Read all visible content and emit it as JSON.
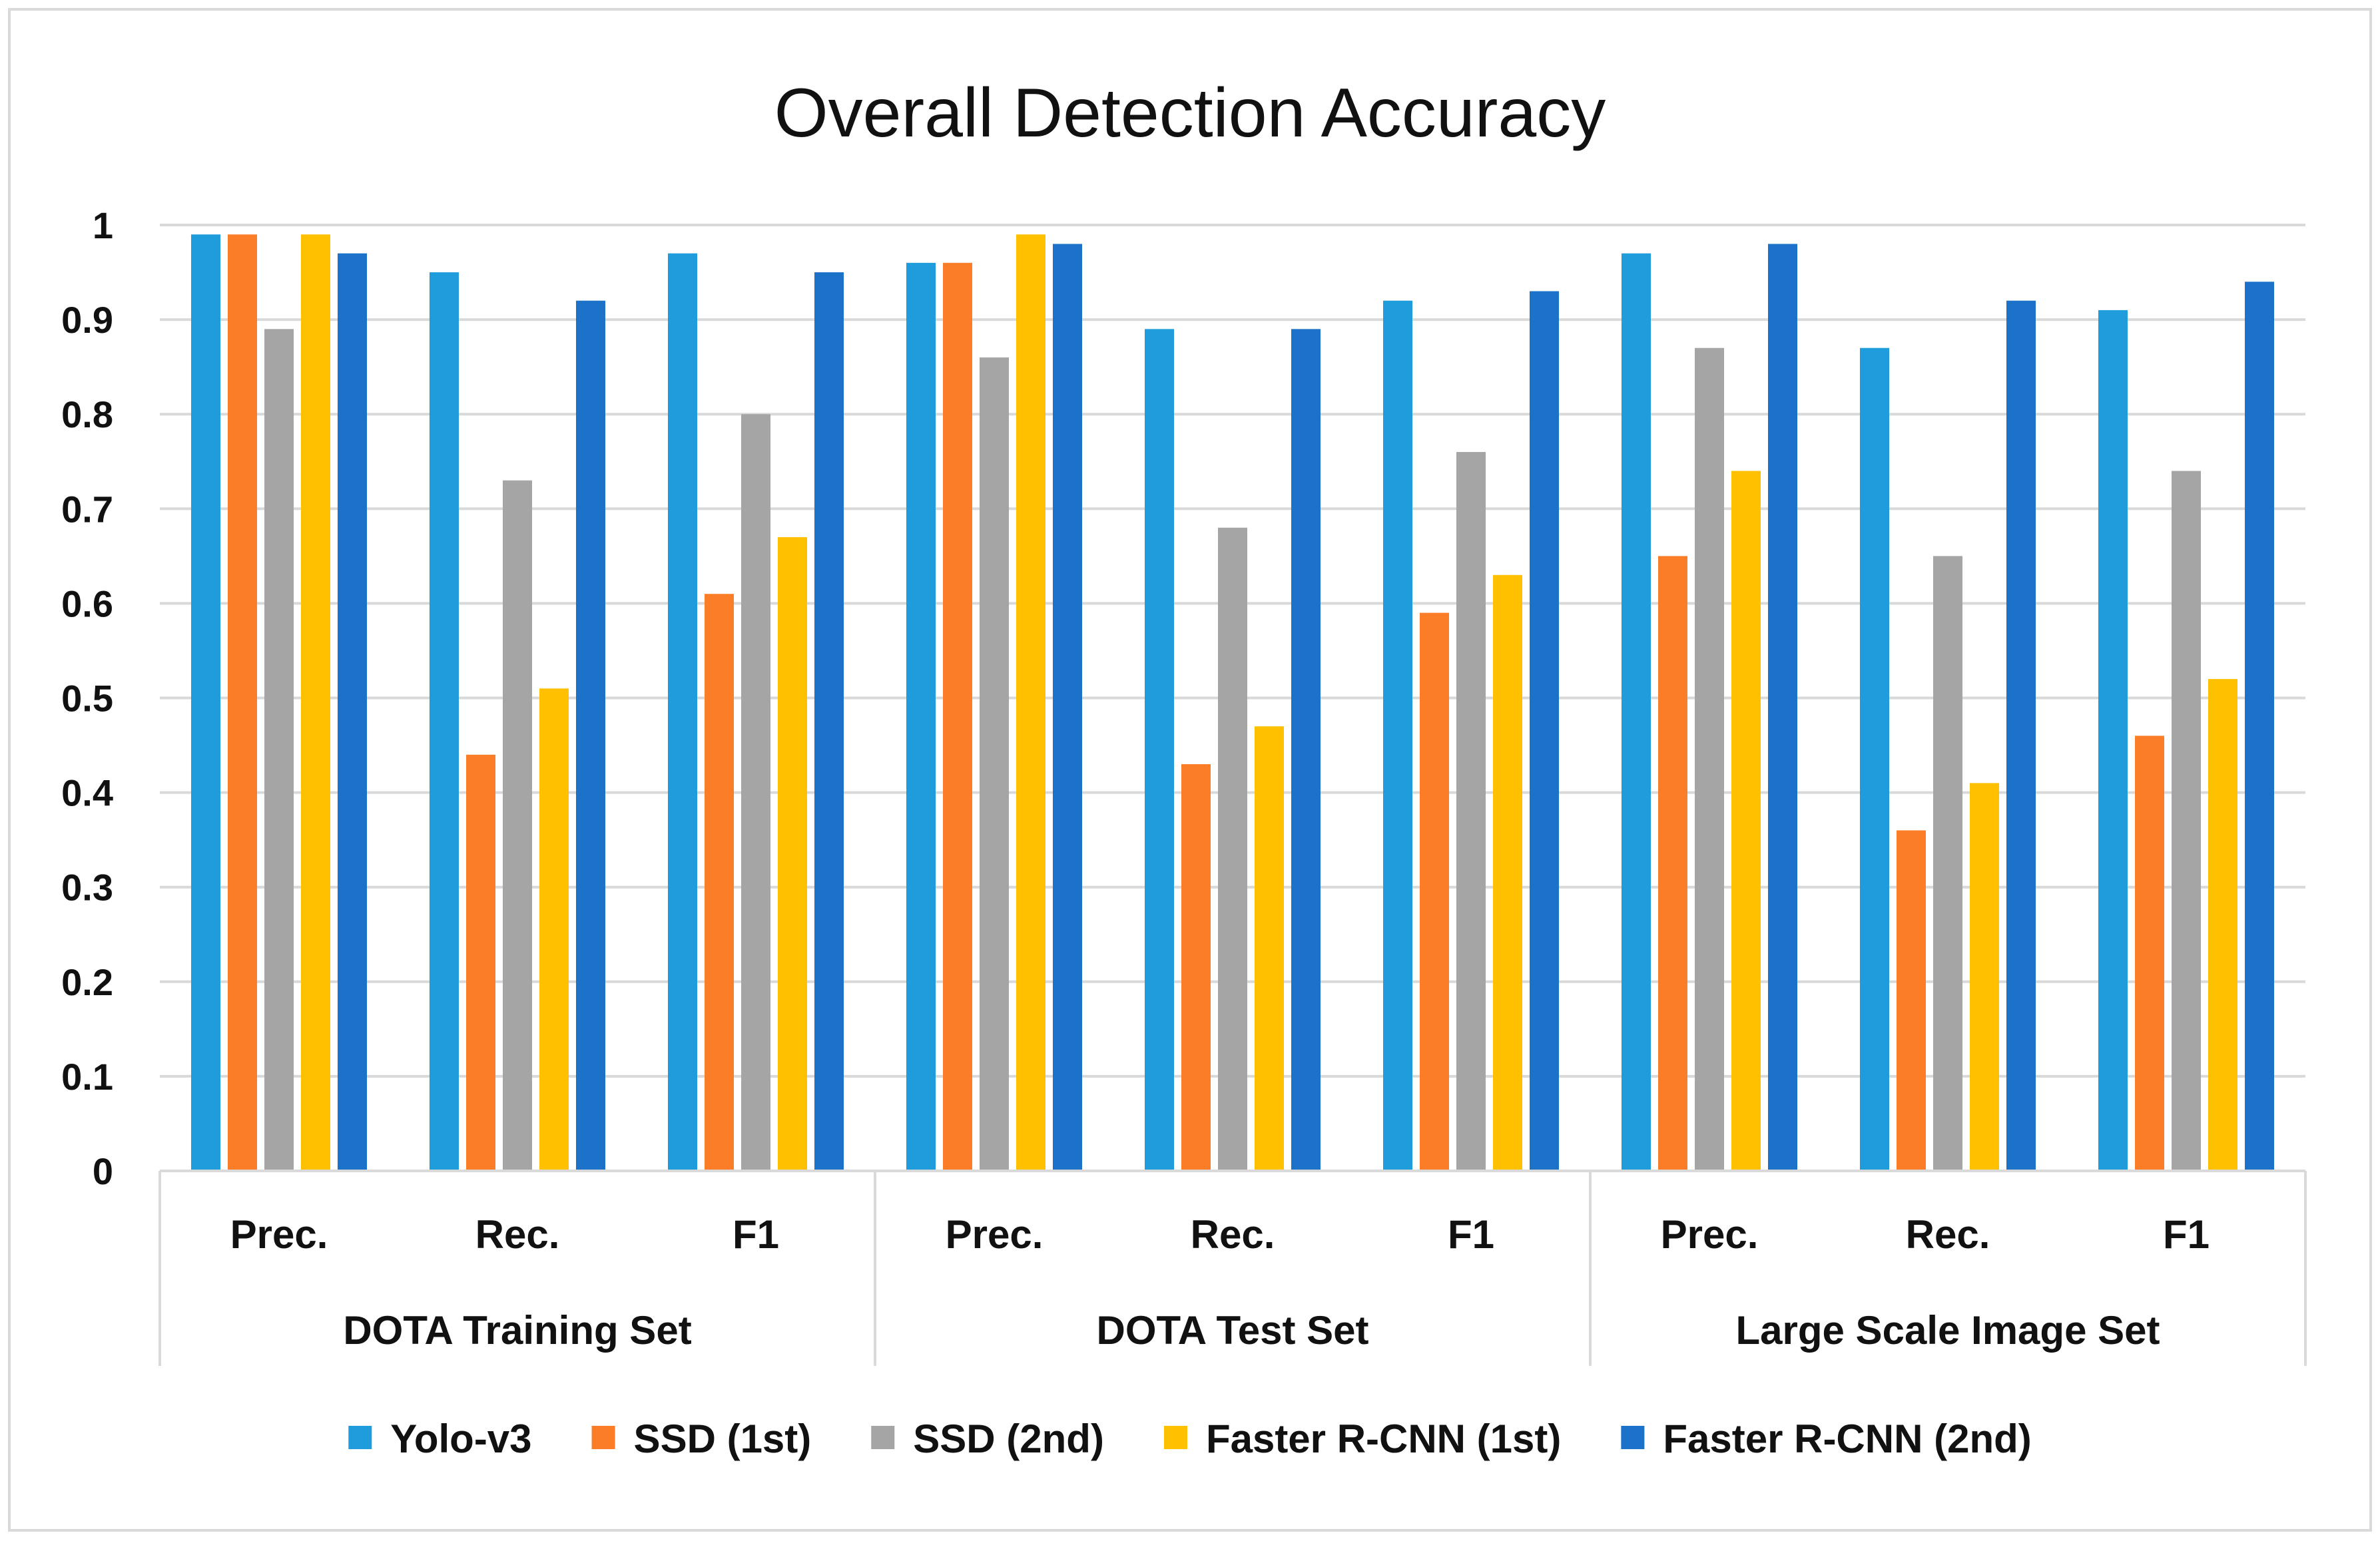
{
  "chart_data": {
    "type": "bar",
    "title": "Overall Detection Accuracy",
    "xlabel": "",
    "ylabel": "",
    "ylim": [
      0,
      1
    ],
    "yticks": [
      0,
      0.1,
      0.2,
      0.3,
      0.4,
      0.5,
      0.6,
      0.7,
      0.8,
      0.9,
      1
    ],
    "ytick_labels": [
      "0",
      "0.1",
      "0.2",
      "0.3",
      "0.4",
      "0.5",
      "0.6",
      "0.7",
      "0.8",
      "0.9",
      "1"
    ],
    "grid": true,
    "legend_position": "bottom",
    "groups": [
      {
        "label": "DOTA Training Set",
        "categories": [
          "Prec.",
          "Rec.",
          "F1"
        ]
      },
      {
        "label": "DOTA Test Set",
        "categories": [
          "Prec.",
          "Rec.",
          "F1"
        ]
      },
      {
        "label": "Large Scale Image Set",
        "categories": [
          "Prec.",
          "Rec.",
          "F1"
        ]
      }
    ],
    "categories": [
      "DOTA Training Set / Prec.",
      "DOTA Training Set / Rec.",
      "DOTA Training Set / F1",
      "DOTA Test Set / Prec.",
      "DOTA Test Set / Rec.",
      "DOTA Test Set / F1",
      "Large Scale Image Set / Prec.",
      "Large Scale Image Set / Rec.",
      "Large Scale Image Set / F1"
    ],
    "series": [
      {
        "name": "Yolo-v3",
        "color": "#1f9cdb",
        "values": [
          0.99,
          0.95,
          0.97,
          0.96,
          0.89,
          0.92,
          0.97,
          0.87,
          0.91
        ]
      },
      {
        "name": "SSD (1st)",
        "color": "#fb7d28",
        "values": [
          0.99,
          0.44,
          0.61,
          0.96,
          0.43,
          0.59,
          0.65,
          0.36,
          0.46
        ]
      },
      {
        "name": "SSD (2nd)",
        "color": "#a5a5a5",
        "values": [
          0.89,
          0.73,
          0.8,
          0.86,
          0.68,
          0.76,
          0.87,
          0.65,
          0.74
        ]
      },
      {
        "name": "Faster R-CNN (1st)",
        "color": "#ffc000",
        "values": [
          0.99,
          0.51,
          0.67,
          0.99,
          0.47,
          0.63,
          0.74,
          0.41,
          0.52
        ]
      },
      {
        "name": "Faster R-CNN (2nd)",
        "color": "#1c72c9",
        "values": [
          0.97,
          0.92,
          0.95,
          0.98,
          0.89,
          0.93,
          0.98,
          0.92,
          0.94
        ]
      }
    ]
  }
}
